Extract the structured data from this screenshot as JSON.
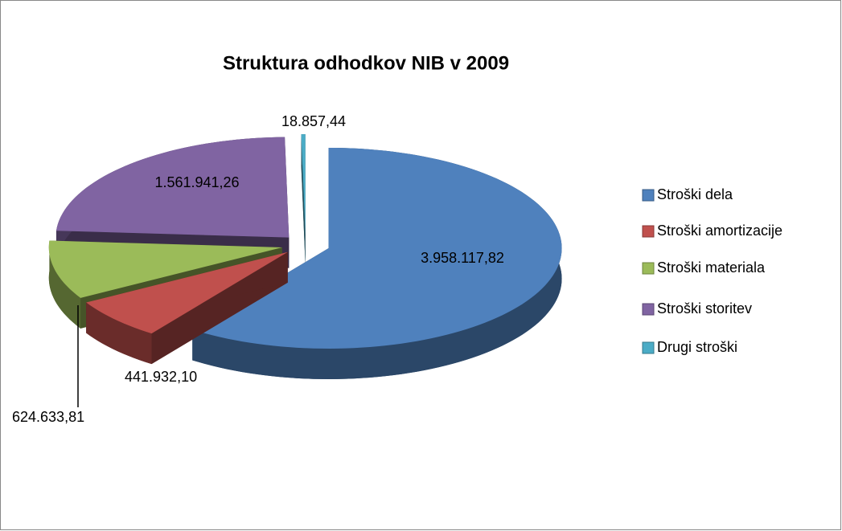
{
  "chart_data": {
    "type": "pie",
    "title": "Struktura odhodkov  NIB v 2009",
    "categories": [
      "Stroški dela",
      "Stroški amortizacije",
      "Stroški materiala",
      "Stroški storitev",
      "Drugi stroški"
    ],
    "values": [
      3958117.82,
      441932.1,
      624633.81,
      1561941.26,
      18857.44
    ],
    "value_labels": [
      "3.958.117,82",
      "441.932,10",
      "624.633,81",
      "1.561.941,26",
      "18.857,44"
    ],
    "colors": [
      "#4f81bd",
      "#c0504d",
      "#9bbb59",
      "#8064a2",
      "#4bacc6"
    ],
    "legend": "right"
  }
}
